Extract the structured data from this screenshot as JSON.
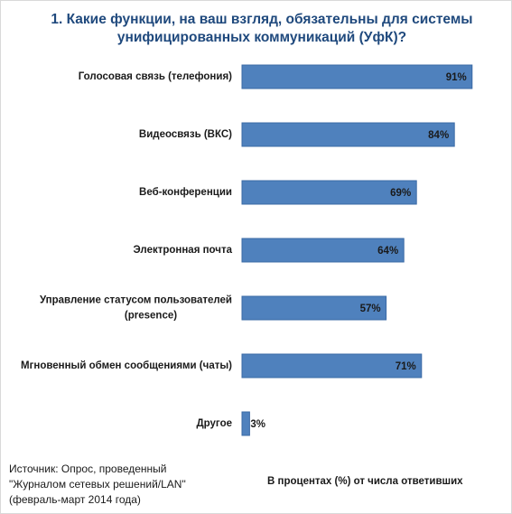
{
  "chart_data": {
    "type": "bar",
    "orientation": "horizontal",
    "title": [
      "1. Какие функции, на ваш взгляд, обязательны для системы",
      "унифицированных коммуникаций (УфК)?"
    ],
    "categories": [
      [
        "Голосовая связь (телефония)"
      ],
      [
        "Видеосвязь (ВКС)"
      ],
      [
        "Веб-конференции"
      ],
      [
        "Электронная почта"
      ],
      [
        "Управление статусом пользователей",
        "(presence)"
      ],
      [
        "Мгновенный обмен сообщениями (чаты)"
      ],
      [
        "Другое"
      ]
    ],
    "values": [
      91,
      84,
      69,
      64,
      57,
      71,
      3
    ],
    "data_labels": [
      "91%",
      "84%",
      "69%",
      "64%",
      "57%",
      "71%",
      "3%"
    ],
    "xlim": [
      0,
      100
    ],
    "bar_color": "#4f81bd",
    "bar_edge_color": "#3a6aa5",
    "title_color": "#1f497d",
    "grid": false,
    "legend": "none"
  },
  "footer": {
    "source_lines": [
      "Источник: Опрос, проведенный",
      "\"Журналом сетевых решений/LAN\"",
      "(февраль-март 2014 года)"
    ],
    "unit_note": "В процентах (%) от числа ответивших"
  }
}
